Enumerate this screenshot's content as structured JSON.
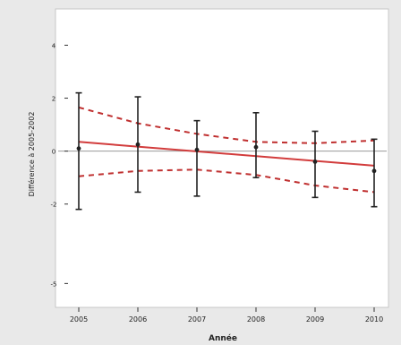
{
  "chart_data": {
    "type": "line",
    "title": "",
    "xlabel": "Année",
    "ylabel": "Différence à 2005-2002",
    "x": [
      2005,
      2006,
      2007,
      2008,
      2009,
      2010
    ],
    "xtick_labels": [
      "2005",
      "2006",
      "2007",
      "2008",
      "2009",
      "2010"
    ],
    "yticks": [
      -5,
      -2,
      0,
      2,
      4
    ],
    "ytick_labels": [
      "-5",
      "-2",
      "0",
      "2",
      "4"
    ],
    "ylim": [
      -5.8,
      5.2
    ],
    "grid": false,
    "reference_line": 0,
    "points": [
      {
        "x": 2005,
        "y": 0.1,
        "low": -2.2,
        "high": 2.2
      },
      {
        "x": 2006,
        "y": 0.25,
        "low": -1.55,
        "high": 2.05
      },
      {
        "x": 2007,
        "y": 0.05,
        "low": -1.7,
        "high": 1.15
      },
      {
        "x": 2008,
        "y": 0.15,
        "low": -1.0,
        "high": 1.45
      },
      {
        "x": 2009,
        "y": -0.4,
        "low": -1.75,
        "high": 0.75
      },
      {
        "x": 2010,
        "y": -0.75,
        "low": -2.1,
        "high": 0.45
      }
    ],
    "fit_line": {
      "x": [
        2005,
        2010
      ],
      "y": [
        0.35,
        -0.55
      ]
    },
    "ci_upper": {
      "x": [
        2005,
        2006,
        2007,
        2008,
        2009,
        2010
      ],
      "y": [
        1.65,
        1.05,
        0.65,
        0.35,
        0.3,
        0.4
      ]
    },
    "ci_lower": {
      "x": [
        2005,
        2006,
        2007,
        2008,
        2009,
        2010
      ],
      "y": [
        -0.95,
        -0.75,
        -0.7,
        -0.9,
        -1.3,
        -1.55
      ]
    },
    "colors": {
      "fit": "#d23c3c",
      "ci": "#c03030",
      "points": "#222222",
      "reference": "#999999"
    }
  }
}
